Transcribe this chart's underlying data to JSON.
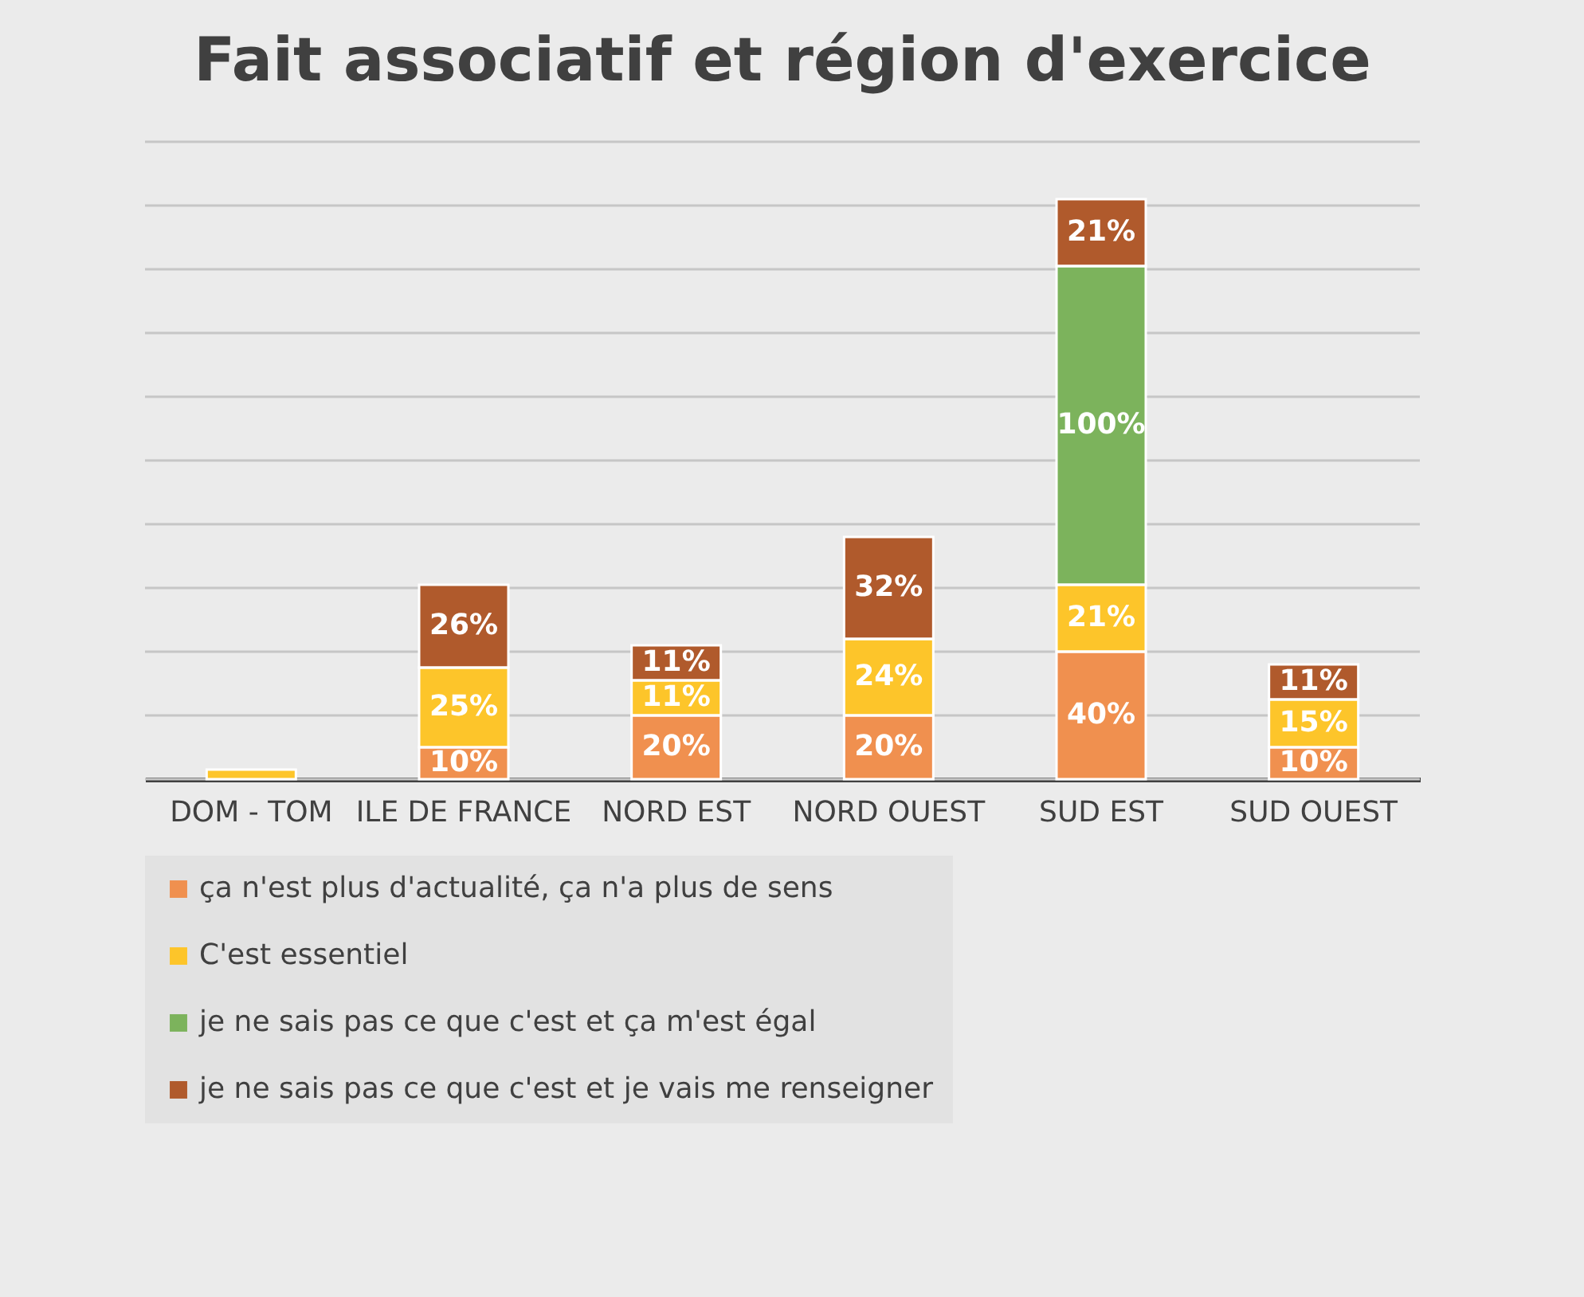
{
  "chart_data": {
    "type": "bar",
    "title": "Fait associatif et région d'exercice",
    "categories": [
      "DOM - TOM",
      "ILE DE FRANCE",
      "NORD EST",
      "NORD OUEST",
      "SUD EST",
      "SUD OUEST"
    ],
    "stacked": true,
    "series": [
      {
        "name": "ça n'est plus d'actualité, ça n'a plus de sens",
        "color": "#f0904f",
        "values": [
          null,
          10,
          20,
          20,
          40,
          10
        ],
        "value_labels": [
          null,
          "10%",
          "20%",
          "20%",
          "40%",
          "10%"
        ]
      },
      {
        "name": "C'est essentiel",
        "color": "#fdc52a",
        "values": [
          3,
          25,
          11,
          24,
          21,
          15
        ],
        "value_labels": [
          null,
          "25%",
          "11%",
          "24%",
          "21%",
          "15%"
        ]
      },
      {
        "name": "je ne sais pas ce que c'est et ça m'est égal",
        "color": "#7cb35c",
        "values": [
          null,
          null,
          null,
          null,
          100,
          null
        ],
        "value_labels": [
          null,
          null,
          null,
          null,
          "100%",
          null
        ]
      },
      {
        "name": "je ne sais pas ce que c'est et je vais me renseigner",
        "color": "#b05a2c",
        "values": [
          null,
          26,
          11,
          32,
          21,
          11
        ],
        "value_labels": [
          null,
          "26%",
          "11%",
          "32%",
          "21%",
          "11%"
        ]
      }
    ],
    "ylim": [
      0,
      200
    ],
    "yticks": [
      {
        "value": 0,
        "label": null
      },
      {
        "value": 20,
        "label": null
      },
      {
        "value": 40,
        "label": null
      },
      {
        "value": 60,
        "label": null
      },
      {
        "value": 80,
        "label": null
      },
      {
        "value": 100,
        "label": null
      },
      {
        "value": 120,
        "label": null
      },
      {
        "value": 140,
        "label": null
      },
      {
        "value": 160,
        "label": null
      },
      {
        "value": 180,
        "label": null
      },
      {
        "value": 200,
        "label": null
      }
    ],
    "grid": "y",
    "tick_labels": "x",
    "legend": "bottom"
  }
}
